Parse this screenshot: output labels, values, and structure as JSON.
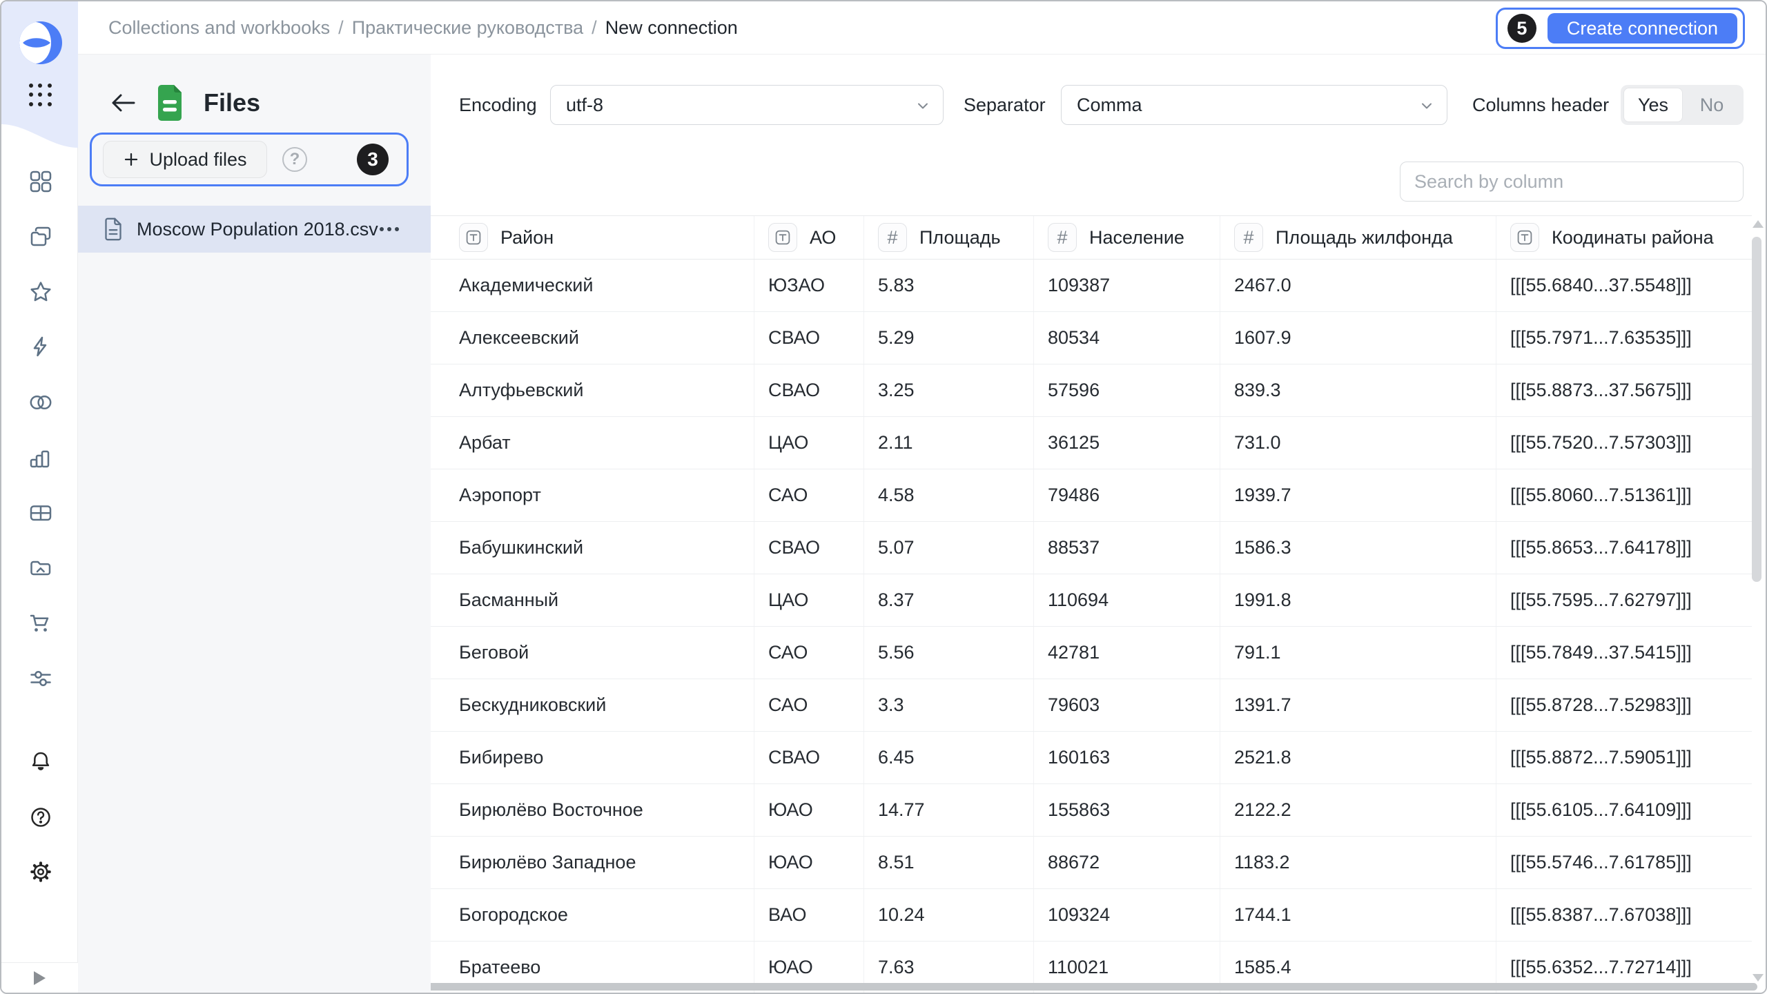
{
  "colors": {
    "accent": "#4C7DF6",
    "badge_bg": "#1E1E20",
    "selection_bg": "#DEE4F3",
    "file_icon_green": "#35A44F",
    "rail_top_bg": "#E4EAFB"
  },
  "breadcrumb": {
    "separator": "/",
    "items": [
      "Collections and workbooks",
      "Практические руководства",
      "New connection"
    ]
  },
  "header": {
    "create_button": "Create connection",
    "create_badge": "5"
  },
  "nav": {
    "icons": [
      "datalens-logo",
      "apps-grid",
      "dashboard-grid",
      "collections-folders",
      "favorites-star",
      "connections-lightning",
      "datasets-circles",
      "charts-bars",
      "dashboards-table",
      "storage-folder",
      "marketplace-cart",
      "services-sliders",
      "notifications-bell",
      "help-question",
      "settings-gear",
      "expand-arrow"
    ]
  },
  "files_panel": {
    "title": "Files",
    "upload_button": "Upload files",
    "upload_badge": "3",
    "file": {
      "name": "Moscow Population 2018.csv"
    }
  },
  "controls": {
    "encoding_label": "Encoding",
    "encoding_value": "utf-8",
    "separator_label": "Separator",
    "separator_value": "Comma",
    "columns_header_label": "Columns header",
    "toggle_yes": "Yes",
    "toggle_no": "No"
  },
  "search": {
    "placeholder": "Search by column"
  },
  "table": {
    "columns": [
      {
        "label": "Район",
        "type": "text"
      },
      {
        "label": "АО",
        "type": "text"
      },
      {
        "label": "Площадь",
        "type": "number"
      },
      {
        "label": "Население",
        "type": "number"
      },
      {
        "label": "Площадь жилфонда",
        "type": "number"
      },
      {
        "label": "Коодинаты района",
        "type": "text"
      }
    ],
    "rows": [
      [
        "Академический",
        "ЮЗАО",
        "5.83",
        "109387",
        "2467.0",
        "[[[55.6840...37.5548]]]"
      ],
      [
        "Алексеевский",
        "СВАО",
        "5.29",
        "80534",
        "1607.9",
        "[[[55.7971...7.63535]]]"
      ],
      [
        "Алтуфьевский",
        "СВАО",
        "3.25",
        "57596",
        "839.3",
        "[[[55.8873...37.5675]]]"
      ],
      [
        "Арбат",
        "ЦАО",
        "2.11",
        "36125",
        "731.0",
        "[[[55.7520...7.57303]]]"
      ],
      [
        "Аэропорт",
        "САО",
        "4.58",
        "79486",
        "1939.7",
        "[[[55.8060...7.51361]]]"
      ],
      [
        "Бабушкинский",
        "СВАО",
        "5.07",
        "88537",
        "1586.3",
        "[[[55.8653...7.64178]]]"
      ],
      [
        "Басманный",
        "ЦАО",
        "8.37",
        "110694",
        "1991.8",
        "[[[55.7595...7.62797]]]"
      ],
      [
        "Беговой",
        "САО",
        "5.56",
        "42781",
        "791.1",
        "[[[55.7849...37.5415]]]"
      ],
      [
        "Бескудниковский",
        "САО",
        "3.3",
        "79603",
        "1391.7",
        "[[[55.8728...7.52983]]]"
      ],
      [
        "Бибирево",
        "СВАО",
        "6.45",
        "160163",
        "2521.8",
        "[[[55.8872...7.59051]]]"
      ],
      [
        "Бирюлёво Восточное",
        "ЮАО",
        "14.77",
        "155863",
        "2122.2",
        "[[[55.6105...7.64109]]]"
      ],
      [
        "Бирюлёво Западное",
        "ЮАО",
        "8.51",
        "88672",
        "1183.2",
        "[[[55.5746...7.61785]]]"
      ],
      [
        "Богородское",
        "ВАО",
        "10.24",
        "109324",
        "1744.1",
        "[[[55.8387...7.67038]]]"
      ],
      [
        "Братеево",
        "ЮАО",
        "7.63",
        "110021",
        "1585.4",
        "[[[55.6352...7.72714]]]"
      ]
    ]
  }
}
